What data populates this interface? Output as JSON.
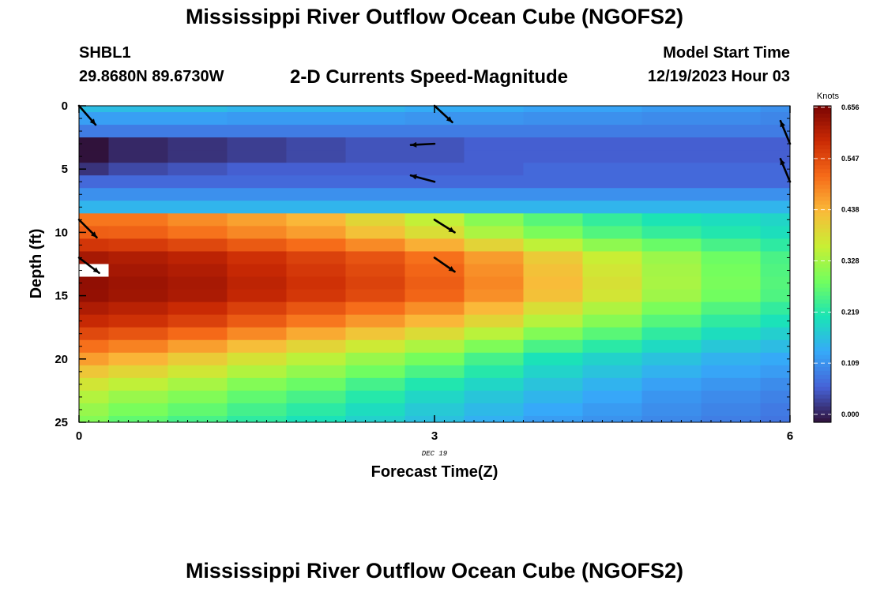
{
  "header": {
    "title": "Mississippi River Outflow Ocean Cube (NGOFS2)",
    "station_id": "SHBL1",
    "station_coords": "29.8680N  89.6730W",
    "plot_title": "2-D Currents Speed-Magnitude",
    "model_start_label": "Model Start Time",
    "model_start_time": "12/19/2023 Hour 03"
  },
  "footer": {
    "title": "Mississippi River Outflow Ocean Cube (NGOFS2)"
  },
  "chart_data": {
    "type": "heatmap",
    "title": "2-D Currents Speed-Magnitude",
    "xlabel": "Forecast Time(Z)",
    "ylabel": "Depth (ft)",
    "x_ticks": [
      0,
      3,
      6
    ],
    "x_date_label": "DEC 19",
    "xlim": [
      0,
      6
    ],
    "y_ticks": [
      0,
      5,
      10,
      15,
      20,
      25
    ],
    "ylim": [
      0,
      25
    ],
    "y_inverted": true,
    "colorbar": {
      "label": "Knots",
      "ticks": [
        "0.656",
        "0.547",
        "0.438",
        "0.328",
        "0.219",
        "0.109",
        "0.000"
      ],
      "range": [
        0.0,
        0.656
      ],
      "colormap": [
        "#30123b",
        "#4662d7",
        "#36a9f9",
        "#1ae4b6",
        "#72fe5e",
        "#c8ef34",
        "#faba39",
        "#f66b19",
        "#ca2a04",
        "#7a0403"
      ]
    },
    "columns": [
      0.0,
      0.5,
      1.0,
      1.5,
      2.0,
      2.5,
      3.0,
      3.5,
      4.0,
      4.5,
      5.0,
      5.5,
      6.0
    ],
    "column_data": [
      {
        "x": 0.0,
        "surface": 0.17,
        "near": [
          0.1,
          0.08,
          0.0,
          0.03
        ],
        "deep": [
          0.5,
          0.62,
          0.64,
          0.58,
          0.47,
          0.36,
          0.3
        ]
      },
      {
        "x": 0.5,
        "surface": 0.17,
        "near": [
          0.1,
          0.08,
          0.02,
          0.05
        ],
        "deep": [
          0.5,
          0.61,
          0.63,
          0.57,
          0.45,
          0.34,
          0.27
        ]
      },
      {
        "x": 1.0,
        "surface": 0.17,
        "near": [
          0.1,
          0.08,
          0.03,
          0.06
        ],
        "deep": [
          0.48,
          0.6,
          0.62,
          0.55,
          0.42,
          0.32,
          0.25
        ]
      },
      {
        "x": 1.5,
        "surface": 0.16,
        "near": [
          0.1,
          0.08,
          0.04,
          0.07
        ],
        "deep": [
          0.46,
          0.58,
          0.6,
          0.52,
          0.39,
          0.29,
          0.23
        ]
      },
      {
        "x": 2.0,
        "surface": 0.16,
        "near": [
          0.1,
          0.08,
          0.05,
          0.07
        ],
        "deep": [
          0.44,
          0.56,
          0.58,
          0.49,
          0.36,
          0.27,
          0.21
        ]
      },
      {
        "x": 2.5,
        "surface": 0.16,
        "near": [
          0.1,
          0.08,
          0.06,
          0.07
        ],
        "deep": [
          0.4,
          0.54,
          0.56,
          0.46,
          0.33,
          0.24,
          0.19
        ]
      },
      {
        "x": 3.0,
        "surface": 0.15,
        "near": [
          0.1,
          0.08,
          0.06,
          0.07
        ],
        "deep": [
          0.36,
          0.51,
          0.53,
          0.43,
          0.3,
          0.21,
          0.17
        ]
      },
      {
        "x": 3.5,
        "surface": 0.15,
        "near": [
          0.1,
          0.08,
          0.07,
          0.07
        ],
        "deep": [
          0.31,
          0.47,
          0.49,
          0.39,
          0.26,
          0.19,
          0.15
        ]
      },
      {
        "x": 4.0,
        "surface": 0.14,
        "near": [
          0.1,
          0.08,
          0.07,
          0.08
        ],
        "deep": [
          0.27,
          0.42,
          0.44,
          0.34,
          0.22,
          0.17,
          0.13
        ]
      },
      {
        "x": 4.5,
        "surface": 0.14,
        "near": [
          0.1,
          0.08,
          0.07,
          0.08
        ],
        "deep": [
          0.24,
          0.37,
          0.39,
          0.3,
          0.2,
          0.15,
          0.12
        ]
      },
      {
        "x": 5.0,
        "surface": 0.13,
        "near": [
          0.1,
          0.08,
          0.07,
          0.08
        ],
        "deep": [
          0.22,
          0.33,
          0.34,
          0.26,
          0.18,
          0.13,
          0.11
        ]
      },
      {
        "x": 5.5,
        "surface": 0.13,
        "near": [
          0.1,
          0.08,
          0.07,
          0.08
        ],
        "deep": [
          0.21,
          0.29,
          0.3,
          0.23,
          0.16,
          0.12,
          0.1
        ]
      },
      {
        "x": 6.0,
        "surface": 0.12,
        "near": [
          0.1,
          0.08,
          0.07,
          0.08
        ],
        "deep": [
          0.2,
          0.26,
          0.27,
          0.21,
          0.15,
          0.11,
          0.09
        ]
      }
    ],
    "depth_layers_ft": [
      0,
      0.5,
      1.5,
      2.5,
      3.5,
      4.5,
      5.5,
      6.5,
      7.5,
      8.5,
      9.5,
      10.5,
      11.5,
      12.5,
      13.5,
      14.5,
      15.5,
      16.5,
      17.5,
      18.5,
      19.5,
      20.5,
      21.5,
      22.5,
      23.5,
      24.5,
      25
    ],
    "missing_cells": [
      {
        "x": 0.0,
        "depth": 13.0
      }
    ],
    "direction_arrows": [
      {
        "x": 0.0,
        "depth": 0.0,
        "dx": 0.14,
        "dy": 1.5
      },
      {
        "x": 0.0,
        "depth": 9.0,
        "dx": 0.15,
        "dy": 1.4
      },
      {
        "x": 0.0,
        "depth": 12.0,
        "dx": 0.17,
        "dy": 1.2
      },
      {
        "x": 3.0,
        "depth": 0.0,
        "dx": 0.15,
        "dy": 1.3
      },
      {
        "x": 3.0,
        "depth": 3.0,
        "dx": -0.2,
        "dy": 0.1
      },
      {
        "x": 3.0,
        "depth": 6.0,
        "dx": -0.2,
        "dy": -0.5
      },
      {
        "x": 3.0,
        "depth": 9.0,
        "dx": 0.17,
        "dy": 1.0
      },
      {
        "x": 3.0,
        "depth": 12.0,
        "dx": 0.17,
        "dy": 1.1
      },
      {
        "x": 6.0,
        "depth": 3.0,
        "dx": -0.08,
        "dy": -1.8
      },
      {
        "x": 6.0,
        "depth": 6.0,
        "dx": -0.08,
        "dy": -1.8
      }
    ]
  }
}
